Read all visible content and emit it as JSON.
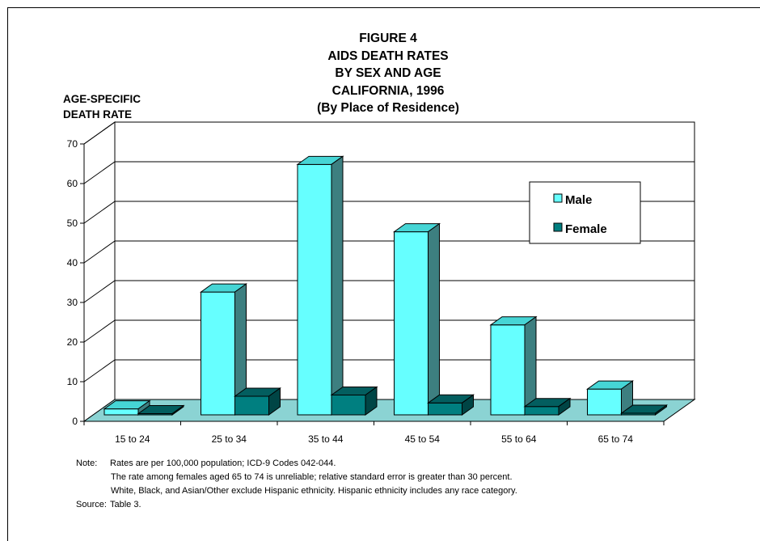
{
  "title": {
    "line1": "FIGURE 4",
    "line2": "AIDS DEATH RATES",
    "line3": "BY SEX AND AGE",
    "line4": "CALIFORNIA, 1996",
    "line5": "(By Place of Residence)"
  },
  "y_axis_label": {
    "line1": "AGE-SPECIFIC",
    "line2": "DEATH RATE"
  },
  "chart_data": {
    "type": "bar",
    "title": "FIGURE 4 AIDS DEATH RATES BY SEX AND AGE CALIFORNIA, 1996 (By Place of Residence)",
    "ylabel": "AGE-SPECIFIC DEATH RATE",
    "xlabel": "",
    "categories": [
      "15 to 24",
      "25 to 34",
      "35 to 44",
      "45 to 54",
      "55 to 64",
      "65 to 74"
    ],
    "series": [
      {
        "name": "Male",
        "values": [
          1.5,
          31.0,
          63.2,
          46.2,
          22.7,
          6.5
        ]
      },
      {
        "name": "Female",
        "values": [
          0.3,
          4.7,
          5.0,
          3.0,
          2.1,
          0.4
        ]
      }
    ],
    "ylim": [
      0,
      70
    ],
    "yticks": [
      0,
      10,
      20,
      30,
      40,
      50,
      60,
      70
    ],
    "grid": true,
    "legend": "inside top-right",
    "style": "3d-clustered-bar",
    "colors": {
      "male_front": "#66ffff",
      "male_top": "#46d5d5",
      "male_side": "#3d7f80",
      "female_front": "#007f80",
      "female_top": "#035e5f",
      "female_side": "#004545",
      "floor": "#8bd3d3"
    }
  },
  "notes": {
    "note_label": "Note:",
    "note_line1": "Rates are per 100,000 population; ICD-9 Codes 042-044.",
    "note_line2": "The rate among females aged 65 to 74 is unreliable;  relative standard error is greater than 30 percent.",
    "note_line3": "White, Black, and Asian/Other exclude Hispanic ethnicity.  Hispanic ethnicity includes any race category.",
    "source_label": "Source:",
    "source_text": "Table 3."
  }
}
